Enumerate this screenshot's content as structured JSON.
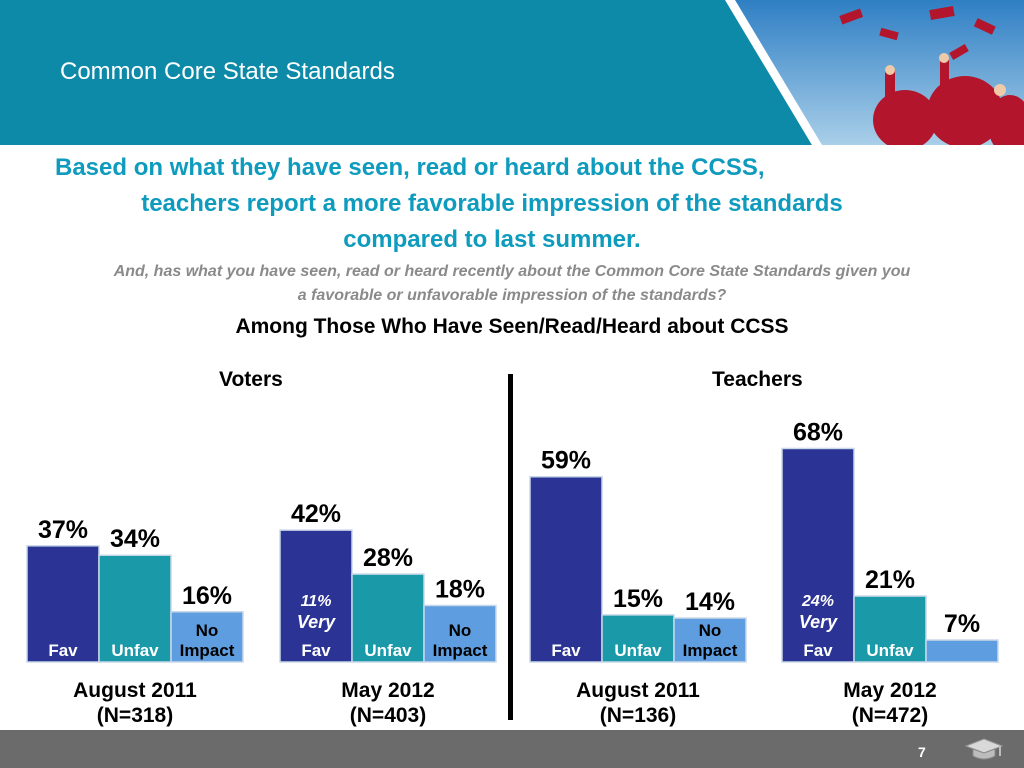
{
  "header": {
    "title": "Common Core State Standards"
  },
  "headline": {
    "line1": "Based on what they have seen, read or heard about the CCSS,",
    "line2": "teachers report a more favorable impression of the standards",
    "line3": "compared to last summer."
  },
  "question": {
    "line1": "And, has what you have seen, read or heard recently about the Common Core State Standards given you",
    "line2": "a favorable or unfavorable impression of the standards?"
  },
  "subtitle": "Among Those Who Have Seen/Read/Heard about CCSS",
  "groups": {
    "voters": "Voters",
    "teachers": "Teachers"
  },
  "footer": {
    "page_number": "7"
  },
  "colors": {
    "header": "#0d8aa8",
    "headline": "#0e9bbd",
    "fav": "#2b3494",
    "unfav": "#1a9aa8",
    "no_impact": "#5e9ee0",
    "footer": "#6b6b6b"
  },
  "chart_data": {
    "type": "bar",
    "categories": [
      "Fav",
      "Unfav",
      "No Impact"
    ],
    "unit": "%",
    "ylim": [
      0,
      100
    ],
    "grid": false,
    "panels": [
      {
        "group": "Voters",
        "label": "August 2011",
        "n": "(N=318)",
        "values": [
          37,
          34,
          16
        ],
        "bar_labels": [
          "Fav",
          "Unfav",
          "No Impact"
        ],
        "very": null
      },
      {
        "group": "Voters",
        "label": "May 2012",
        "n": "(N=403)",
        "values": [
          42,
          28,
          18
        ],
        "bar_labels": [
          "Fav",
          "Unfav",
          "No Impact"
        ],
        "very": {
          "value": "11%",
          "text": "Very"
        }
      },
      {
        "group": "Teachers",
        "label": "August 2011",
        "n": "(N=136)",
        "values": [
          59,
          15,
          14
        ],
        "bar_labels": [
          "Fav",
          "Unfav",
          "No Impact"
        ],
        "very": null
      },
      {
        "group": "Teachers",
        "label": "May 2012",
        "n": "(N=472)",
        "values": [
          68,
          21,
          7
        ],
        "bar_labels": [
          "Fav",
          "Unfav",
          ""
        ],
        "very": {
          "value": "24%",
          "text": "Very"
        }
      }
    ]
  }
}
